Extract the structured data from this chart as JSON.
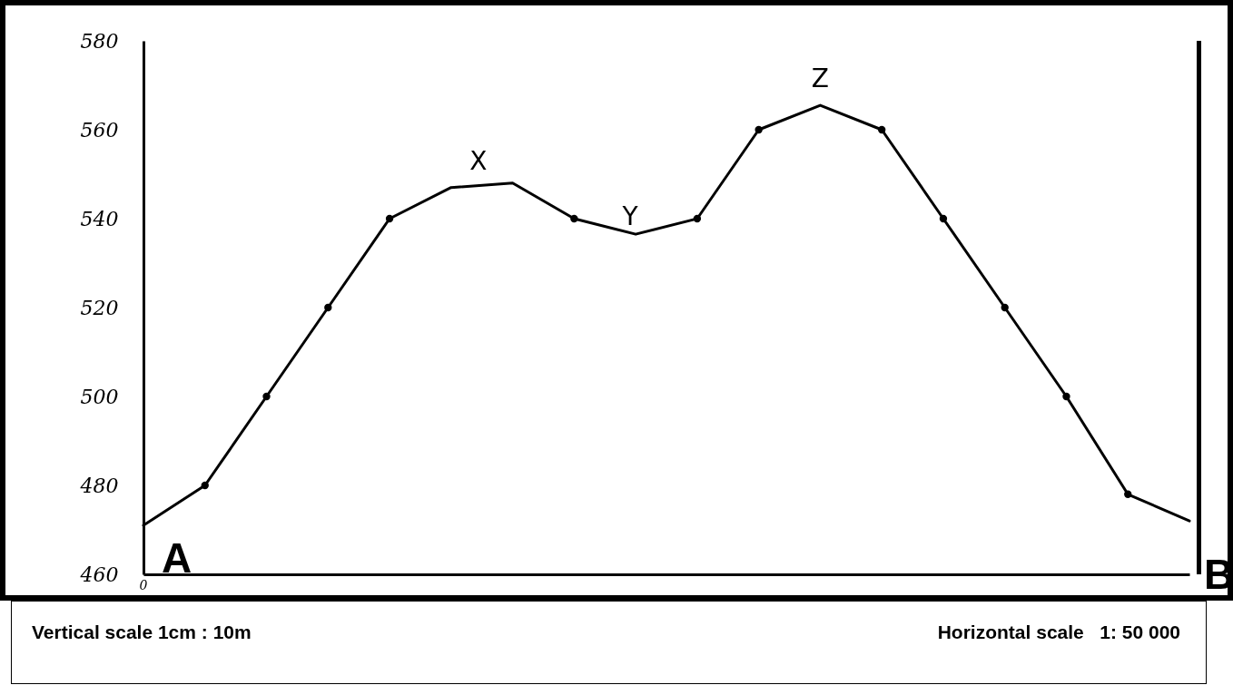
{
  "chart_data": {
    "type": "line",
    "categories": [
      null,
      null,
      null,
      null,
      null,
      null,
      null,
      null,
      null,
      null,
      null,
      null,
      null,
      null,
      null,
      null,
      null,
      null
    ],
    "series": [
      {
        "color": "#000000",
        "values": [
          471,
          480,
          500,
          520,
          540,
          547,
          548,
          540,
          536.5,
          540,
          560,
          565.5,
          560,
          540,
          520,
          500,
          478,
          472
        ]
      },
      {
        "type": "scatter",
        "color": "#000000",
        "values": [
          null,
          480,
          500,
          520,
          540,
          null,
          null,
          540,
          null,
          540,
          560,
          null,
          560,
          540,
          520,
          500,
          478,
          null
        ]
      }
    ],
    "ylim": [
      460,
      580
    ],
    "yticks": [
      460,
      480,
      500,
      520,
      540,
      560,
      580
    ],
    "tick_labels": "y",
    "annotations": [
      "0",
      "A",
      "B",
      "X",
      "Y",
      "Z",
      "Vertical scale 1cm : 10m",
      "Horizontal scale   1: 50 000"
    ]
  }
}
